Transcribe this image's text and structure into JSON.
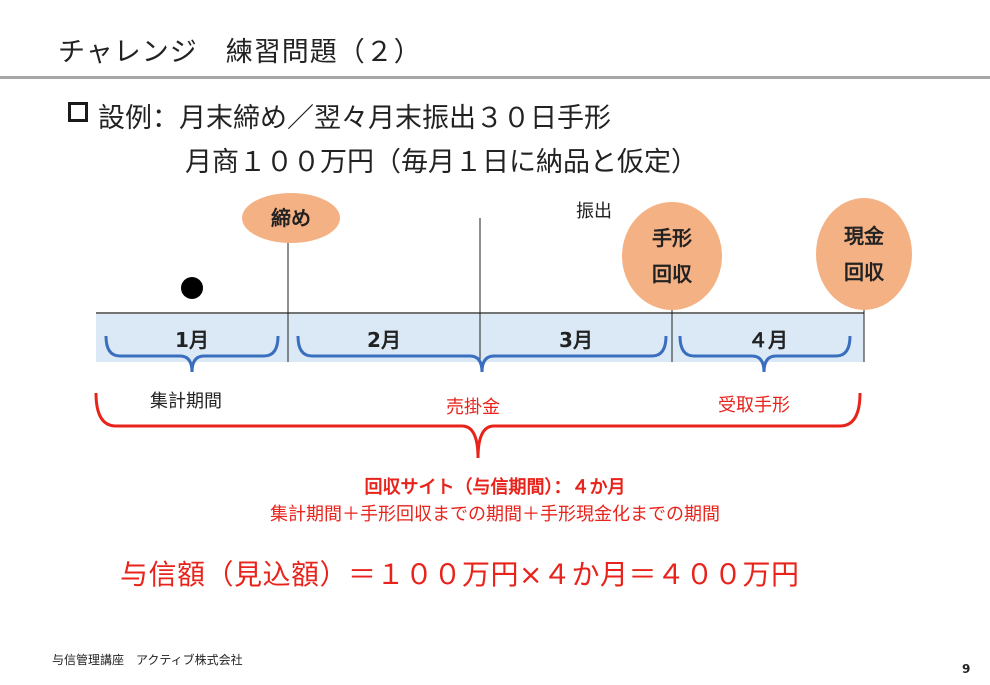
{
  "title": "チャレンジ　練習問題（２）",
  "case": {
    "line1": "設例：月末締め／翌々月末振出３０日手形",
    "line2": "月商１００万円（毎月１日に納品と仮定）"
  },
  "timeline": {
    "months": [
      "1月",
      "2月",
      "3月",
      "４月"
    ],
    "close_label": "締め",
    "issue_label": "振出",
    "note_circle": [
      "手形",
      "回収"
    ],
    "cash_circle": [
      "現金",
      "回収"
    ],
    "period_aggregate": "集計期間",
    "period_receivable": "売掛金",
    "period_note": "受取手形"
  },
  "site": {
    "heading": "回収サイト（与信期間）：４か月",
    "formula": "集計期間＋手形回収までの期間＋手形現金化までの期間"
  },
  "credit_formula": "与信額（見込額）＝１００万円×４か月＝４００万円",
  "footer": {
    "org": "与信管理講座　アクティブ株式会社",
    "page": "9"
  },
  "colors": {
    "accent_red": "#e8231b",
    "circle_fill": "#f4b183",
    "month_fill": "#dbe9f6",
    "bracket_blue": "#3a6ebf"
  }
}
